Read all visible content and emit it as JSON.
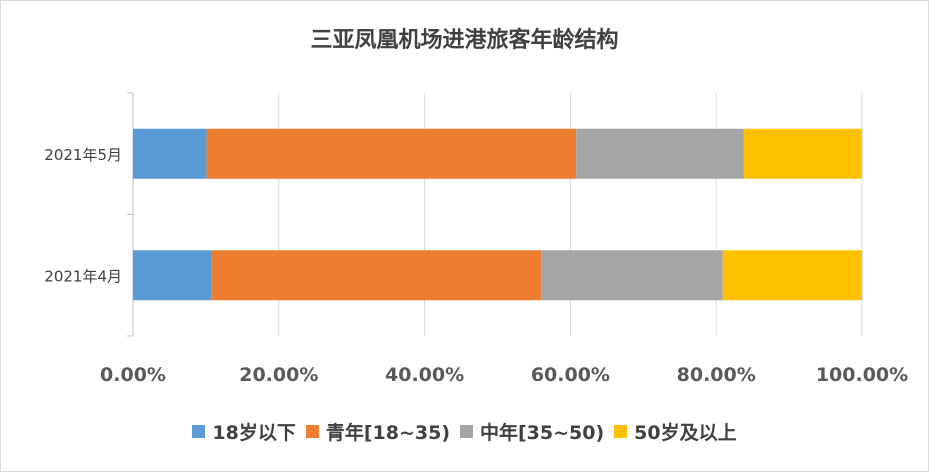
{
  "chart_data": {
    "type": "bar",
    "orientation": "horizontal",
    "stacked": "percent",
    "title": "三亚凤凰机场进港旅客年龄结构",
    "categories": [
      "2021年5月",
      "2021年4月"
    ],
    "series": [
      {
        "name": "18岁以下",
        "color": "#5b9bd5",
        "values": [
          10.1,
          10.8
        ]
      },
      {
        "name": "青年[18~35)",
        "color": "#ed7d31",
        "values": [
          50.7,
          45.2
        ]
      },
      {
        "name": "中年[35~50)",
        "color": "#a5a5a5",
        "values": [
          23.0,
          24.9
        ]
      },
      {
        "name": "50岁及以上",
        "color": "#ffc000",
        "values": [
          16.2,
          19.1
        ]
      }
    ],
    "x_ticks": [
      "0.00%",
      "20.00%",
      "40.00%",
      "60.00%",
      "80.00%",
      "100.00%"
    ],
    "xlim": [
      0,
      100
    ],
    "grid": "vertical",
    "legend_position": "bottom"
  }
}
